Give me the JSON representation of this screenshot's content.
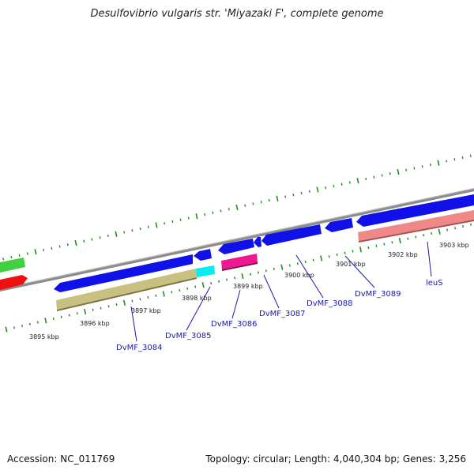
{
  "title": "Desulfovibrio vulgaris str. 'Miyazaki F', complete genome",
  "footer": {
    "accession": "Accession: NC_011769",
    "summary": "Topology: circular; Length: 4,040,304 bp; Genes: 3,256"
  },
  "ticks": [
    "3895 kbp",
    "3896 kbp",
    "3897 kbp",
    "3898 kbp",
    "3899 kbp",
    "3900 kbp",
    "3901 kbp",
    "3902 kbp",
    "3903 kbp"
  ],
  "genes": [
    "DvMF_3084",
    "DvMF_3085",
    "DvMF_3086",
    "DvMF_3087",
    "DvMF_3088",
    "DvMF_3089",
    "leuS"
  ],
  "colors": {
    "cds": "#1010e8",
    "olive": "#c8c080",
    "cyan": "#00f0f0",
    "magenta": "#f01890",
    "salmon": "#f08888",
    "green": "#40d040",
    "red": "#f01010",
    "backbone": "#8a8a8a",
    "tick": "#228b22",
    "label": "#1a1aa8"
  }
}
